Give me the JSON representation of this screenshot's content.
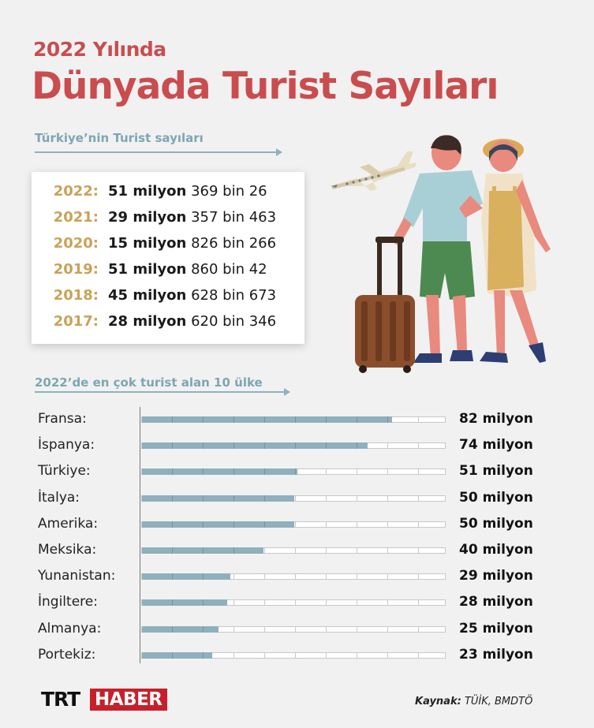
{
  "header": {
    "subtitle": "2022 Yılında",
    "title": "Dünyada Turist Sayıları"
  },
  "turkey_section": {
    "label": "Türkiye’nin Turist sayıları",
    "rows": [
      {
        "year": "2022:",
        "million": "51 milyon",
        "rest": "369 bin 26"
      },
      {
        "year": "2021:",
        "million": "29 milyon",
        "rest": "357 bin 463"
      },
      {
        "year": "2020:",
        "million": "15 milyon",
        "rest": "826 bin 266"
      },
      {
        "year": "2019:",
        "million": "51 milyon",
        "rest": "860 bin 42"
      },
      {
        "year": "2018:",
        "million": "45 milyon",
        "rest": "628 bin 673"
      },
      {
        "year": "2017:",
        "million": "28 milyon",
        "rest": "620 bin 346"
      }
    ]
  },
  "top_countries_section": {
    "label": "2022’de en çok turist alan 10 ülke"
  },
  "chart_data": {
    "type": "bar",
    "orientation": "horizontal",
    "title": "2022’de en çok turist alan 10 ülke",
    "categories": [
      "Fransa:",
      "İspanya:",
      "Türkiye:",
      "İtalya:",
      "Amerika:",
      "Meksika:",
      "Yunanistan:",
      "İngiltere:",
      "Almanya:",
      "Portekiz:"
    ],
    "values": [
      82,
      74,
      51,
      50,
      50,
      40,
      29,
      28,
      25,
      23
    ],
    "value_labels": [
      "82 milyon",
      "74 milyon",
      "51 milyon",
      "50 milyon",
      "50 milyon",
      "40 milyon",
      "29 milyon",
      "28 milyon",
      "25 milyon",
      "23 milyon"
    ],
    "xlim": [
      0,
      100
    ],
    "grid": false,
    "bar_color": "#8fb0bc"
  },
  "footer": {
    "logo_trt": "TRT",
    "logo_haber": "HABER",
    "source_label": "Kaynak:",
    "source_text": "TÜİK, BMDTÖ"
  },
  "colors": {
    "accent_red": "#c94d4e",
    "year_gold": "#c9a257",
    "section_blue": "#7ea6b3",
    "logo_red": "#c8202a"
  },
  "illustration_icons": [
    "airplane-icon",
    "tourist-couple-illustration",
    "suitcase-icon"
  ]
}
